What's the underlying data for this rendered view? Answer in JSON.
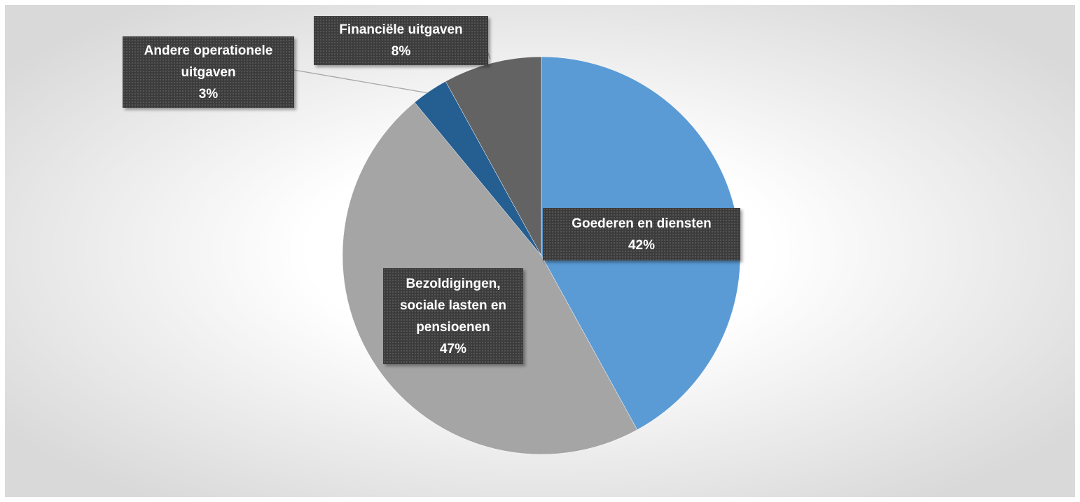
{
  "chart_data": {
    "type": "pie",
    "categories": [
      "Goederen en diensten",
      "Bezoldigingen, sociale lasten en pensioenen",
      "Andere operationele uitgaven",
      "Financiële uitgaven"
    ],
    "values": [
      42,
      47,
      3,
      8
    ],
    "value_labels": [
      "42%",
      "47%",
      "3%",
      "8%"
    ],
    "colors": [
      "#5b9bd5",
      "#a5a5a5",
      "#255e91",
      "#636363"
    ]
  }
}
